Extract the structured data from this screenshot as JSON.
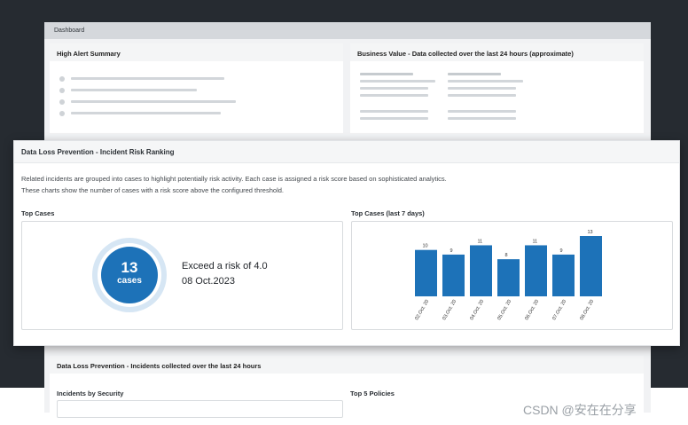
{
  "dashboard": {
    "header_title": "Dashboard",
    "high_alert": {
      "title": "High Alert Summary"
    },
    "business_value": {
      "title": "Business Value - Data collected over the last 24 hours (approximate)"
    },
    "dlp_section": {
      "title": "Data Loss Prevention - Incidents collected over the last 24 hours",
      "incidents_by_security": "Incidents by Security",
      "top_policies": "Top 5 Policies"
    }
  },
  "modal": {
    "title": "Data Loss Prevention - Incident Risk Ranking",
    "description_1": "Related incidents are grouped into cases to highlight potentially risk activity. Each case is assigned a risk score based on sophisticated analytics.",
    "description_2": "These charts show the number of cases with a risk score above the configured threshold.",
    "top_cases": {
      "label": "Top Cases",
      "count": "13",
      "unit": "cases",
      "exceed_text": "Exceed a risk of 4.0",
      "date": "08 Oct.2023"
    },
    "top_cases_7d": {
      "label": "Top Cases (last 7 days)"
    }
  },
  "chart_data": {
    "type": "bar",
    "categories": [
      "02.Oct. 20",
      "03.Oct. 20",
      "04.Oct. 20",
      "05.Oct. 20",
      "06.Oct. 20",
      "07.Oct. 20",
      "08.Oct. 20"
    ],
    "values": [
      10,
      9,
      11,
      8,
      11,
      9,
      13
    ],
    "ylim": [
      0,
      13
    ],
    "bar_color": "#1d72b8",
    "grid": false
  },
  "watermark": "CSDN @安在在分享"
}
